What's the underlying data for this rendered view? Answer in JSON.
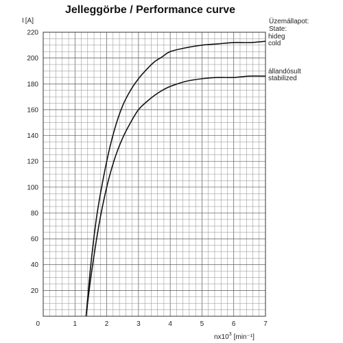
{
  "chart_data": {
    "type": "line",
    "title": "Jelleggörbe / Performance curve",
    "ylabel": "I",
    "ylabel_unit": "[A]",
    "xlabel": "nx10",
    "xlabel_exp": "3",
    "xlabel_unit": "[min⁻¹]",
    "xlim": [
      0,
      7
    ],
    "ylim": [
      0,
      220
    ],
    "x_ticks": [
      "0",
      "1",
      "2",
      "3",
      "4",
      "5",
      "6",
      "7"
    ],
    "y_ticks": [
      "20",
      "40",
      "60",
      "80",
      "100",
      "120",
      "140",
      "160",
      "180",
      "200",
      "220"
    ],
    "grid": true,
    "state_label": [
      "Üzemállapot:",
      "State:"
    ],
    "series": [
      {
        "name": "hideg",
        "name_alt": "cold",
        "x": [
          1.35,
          1.5,
          1.7,
          2.0,
          2.25,
          2.5,
          2.75,
          3.0,
          3.25,
          3.5,
          3.75,
          4.0,
          4.5,
          5.0,
          5.5,
          6.0,
          6.5,
          7.0
        ],
        "values": [
          0,
          40,
          80,
          120,
          145,
          163,
          175,
          184,
          191,
          197,
          201,
          205,
          208,
          210,
          211,
          212,
          212,
          213
        ]
      },
      {
        "name": "állandósult",
        "name_alt": "stabilized",
        "x": [
          1.35,
          1.5,
          1.75,
          2.0,
          2.25,
          2.5,
          2.75,
          3.0,
          3.25,
          3.5,
          3.75,
          4.0,
          4.5,
          5.0,
          5.5,
          6.0,
          6.5,
          7.0
        ],
        "values": [
          0,
          30,
          70,
          100,
          122,
          138,
          150,
          160,
          166,
          171,
          175,
          178,
          182,
          184,
          185,
          185,
          186,
          186
        ]
      }
    ]
  }
}
